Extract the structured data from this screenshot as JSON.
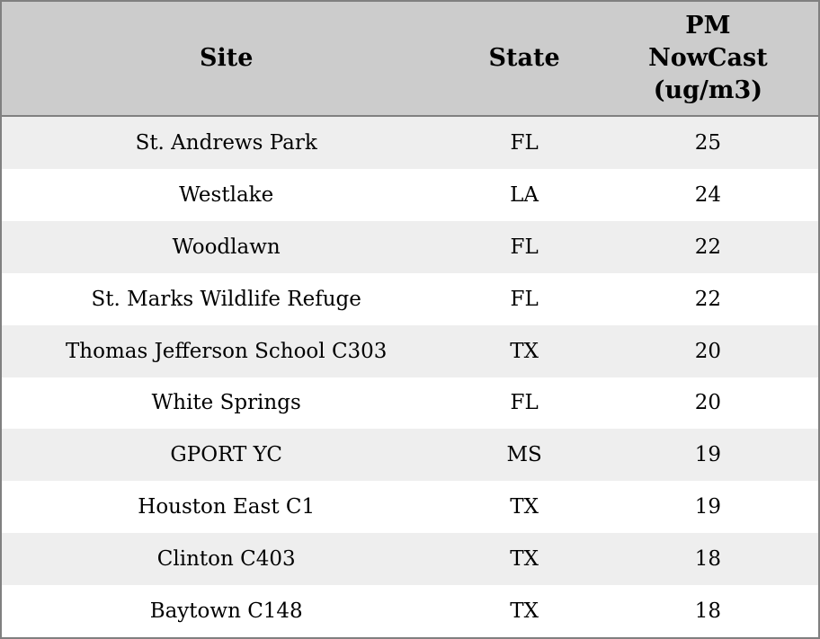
{
  "table": {
    "headers": [
      "Site",
      "State",
      "PM\nNowCast\n(ug/m3)"
    ],
    "rows": [
      {
        "site": "St. Andrews Park",
        "state": "FL",
        "pm": "25"
      },
      {
        "site": "Westlake",
        "state": "LA",
        "pm": "24"
      },
      {
        "site": "Woodlawn",
        "state": "FL",
        "pm": "22"
      },
      {
        "site": "St. Marks Wildlife Refuge",
        "state": "FL",
        "pm": "22"
      },
      {
        "site": "Thomas Jefferson School C303",
        "state": "TX",
        "pm": "20"
      },
      {
        "site": "White Springs",
        "state": "FL",
        "pm": "20"
      },
      {
        "site": "GPORT YC",
        "state": "MS",
        "pm": "19"
      },
      {
        "site": "Houston East C1",
        "state": "TX",
        "pm": "19"
      },
      {
        "site": "Clinton C403",
        "state": "TX",
        "pm": "18"
      },
      {
        "site": "Baytown C148",
        "state": "TX",
        "pm": "18"
      }
    ]
  },
  "chart_data": {
    "type": "table",
    "title": "",
    "columns": [
      "Site",
      "State",
      "PM NowCast (ug/m3)"
    ],
    "rows": [
      [
        "St. Andrews Park",
        "FL",
        25
      ],
      [
        "Westlake",
        "LA",
        24
      ],
      [
        "Woodlawn",
        "FL",
        22
      ],
      [
        "St. Marks Wildlife Refuge",
        "FL",
        22
      ],
      [
        "Thomas Jefferson School C303",
        "TX",
        20
      ],
      [
        "White Springs",
        "FL",
        20
      ],
      [
        "GPORT YC",
        "MS",
        19
      ],
      [
        "Houston East C1",
        "TX",
        19
      ],
      [
        "Clinton C403",
        "TX",
        18
      ],
      [
        "Baytown C148",
        "TX",
        18
      ]
    ],
    "layout": {
      "striped_rows": true,
      "cell_alignment": "center",
      "grid": "horizontal-header-separator-only"
    }
  },
  "colors": {
    "header_bg": "#cccccc",
    "row_stripe_bg": "#eeeeee",
    "row_bg": "#ffffff",
    "border": "#808080",
    "text": "#000000"
  }
}
